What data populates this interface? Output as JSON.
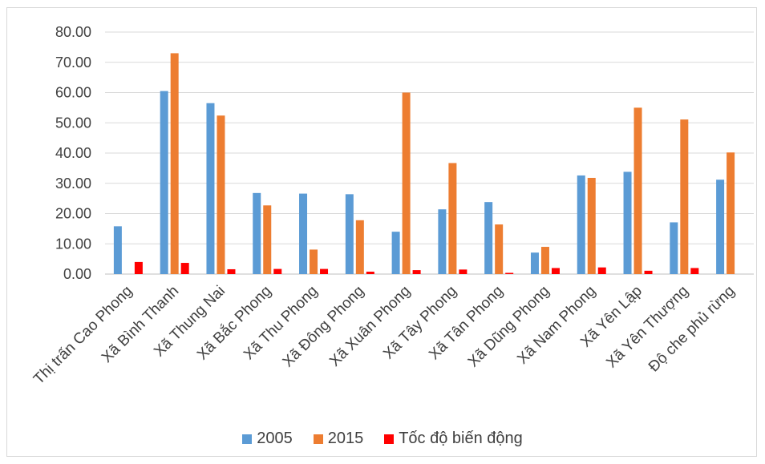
{
  "chart_data": {
    "type": "bar",
    "title": "",
    "xlabel": "",
    "ylabel": "",
    "ylim": [
      0,
      80
    ],
    "y_ticks": [
      "0.00",
      "10.00",
      "20.00",
      "30.00",
      "40.00",
      "50.00",
      "60.00",
      "70.00",
      "80.00"
    ],
    "grid": true,
    "legend_position": "bottom",
    "categories": [
      "Thị trấn Cao Phong",
      "Xã Bình Thanh",
      "Xã Thung Nai",
      "Xã Bắc Phong",
      "Xã Thu Phong",
      "Xã Đông Phong",
      "Xã Xuân Phong",
      "Xã Tây Phong",
      "Xã Tân Phong",
      "Xã Dũng Phong",
      "Xã Nam Phong",
      "Xã Yên Lập",
      "Xã Yên Thượng",
      "Độ che phủ rừng"
    ],
    "series": [
      {
        "name": "2005",
        "color": "#5b9bd5",
        "values": [
          15.8,
          60.5,
          56.5,
          26.8,
          26.6,
          26.4,
          14.0,
          21.4,
          23.8,
          7.1,
          32.6,
          33.8,
          17.1,
          31.2
        ]
      },
      {
        "name": "2015",
        "color": "#ed7d31",
        "values": [
          0,
          73.0,
          52.4,
          22.7,
          8.1,
          17.8,
          60.0,
          36.7,
          16.4,
          9.0,
          31.8,
          55.0,
          51.1,
          40.2
        ]
      },
      {
        "name": "Tốc độ biến động",
        "color": "#ff0000",
        "values": [
          4.0,
          3.7,
          1.6,
          1.7,
          1.7,
          0.8,
          1.3,
          1.5,
          0.4,
          2.0,
          2.2,
          1.1,
          2.0,
          0
        ]
      }
    ]
  }
}
